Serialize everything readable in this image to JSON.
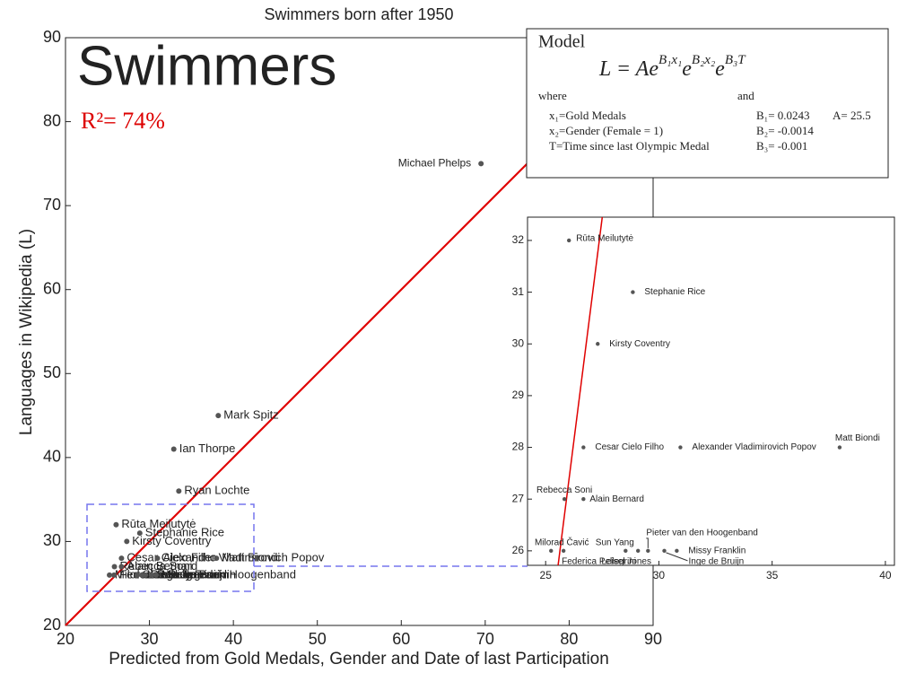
{
  "title": "Swimmers born after 1950",
  "heading": "Swimmers",
  "r_squared": "R²= 74%",
  "model": {
    "title": "Model",
    "equation": [
      "L = Ae",
      "B₁x₁",
      "e",
      "B₂x₂",
      "e",
      "B₃T"
    ],
    "where": "where",
    "and": "and",
    "variables": [
      "x₁=Gold Medals",
      "x₂=Gender (Female = 1)",
      "T=Time since last Olympic Medal"
    ],
    "coefficients": [
      "B₁= 0.0243",
      "B₂= -0.0014",
      "B₃= -0.001"
    ],
    "constant": "A= 25.5"
  },
  "chart_data": {
    "type": "scatter",
    "x_label": "Predicted from Gold Medals, Gender and Date of last Participation",
    "y_label": "Languages in Wikipedia (L)",
    "xlim": [
      20,
      90
    ],
    "ylim": [
      20,
      90
    ],
    "xticks": [
      20,
      30,
      40,
      50,
      60,
      70,
      80,
      90
    ],
    "yticks": [
      20,
      30,
      40,
      50,
      60,
      70,
      80,
      90
    ],
    "color": "#555555",
    "labels": [
      "Michael Phelps",
      "Mark Spitz",
      "Ian Thorpe",
      "Ryan Lochte",
      "Rūta Meilutytė",
      "Stephanie Rice",
      "Kirsty Coventry",
      "Cesar Cielo Filho",
      "Alexander Vladimirovich Popov",
      "Matt Biondi",
      "Rebecca Soni",
      "Alain Bernard",
      "Milorad Čavić",
      "Federica Pellegrini",
      "Sun Yang",
      "Leisel Jones",
      "Pieter van den Hoogenband",
      "Inge de Bruijn",
      "Missy Franklin"
    ],
    "x": [
      69.5,
      38.2,
      32.9,
      33.5,
      26.03,
      28.85,
      27.3,
      26.67,
      30.95,
      37.98,
      25.83,
      26.67,
      25.24,
      25.79,
      28.53,
      29.08,
      29.52,
      30.24,
      30.79
    ],
    "values": [
      75,
      45,
      41,
      36,
      32,
      31,
      30,
      28,
      28,
      28,
      27,
      27,
      26,
      26,
      26,
      26,
      26,
      26,
      26
    ],
    "fit_line": {
      "color": "#e00000",
      "x": [
        20,
        90
      ],
      "y": [
        20,
        90
      ]
    },
    "inset": {
      "xlim": [
        24.2,
        40.4
      ],
      "ylim": [
        25.72,
        32.45
      ],
      "xticks": [
        25,
        30,
        35,
        40
      ],
      "yticks": [
        26,
        27,
        28,
        29,
        30,
        31,
        32
      ],
      "fit_line": {
        "x": [
          25.55,
          27.5
        ],
        "y": [
          25.72,
          32.45
        ]
      }
    }
  }
}
